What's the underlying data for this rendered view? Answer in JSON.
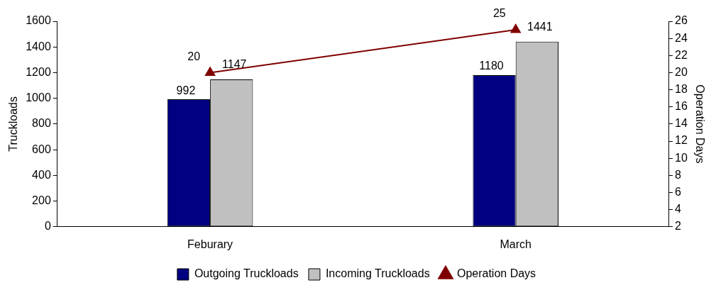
{
  "chart_data": {
    "type": "bar",
    "categories": [
      "Feburary",
      "March"
    ],
    "series": [
      {
        "name": "Outgoing Truckloads",
        "color": "#000080",
        "values": [
          992,
          1180
        ]
      },
      {
        "name": "Incoming Truckloads",
        "color": "#c0c0c0",
        "values": [
          1147,
          1441
        ]
      },
      {
        "name": "Operation Days",
        "type": "line",
        "axis": "y2",
        "color": "#800000",
        "values": [
          20,
          25
        ],
        "marker": "triangle"
      }
    ],
    "ylabel": "Truckloads",
    "y2label": "Operation Days",
    "ylim": [
      0,
      1600
    ],
    "yticks": [
      0,
      200,
      400,
      600,
      800,
      1000,
      1200,
      1400,
      1600
    ],
    "y2lim": [
      2,
      26
    ],
    "y2ticks": [
      2,
      4,
      6,
      8,
      10,
      12,
      14,
      16,
      18,
      20,
      22,
      24,
      26
    ],
    "grid": false,
    "legend": "bottom",
    "data_labels": true
  }
}
